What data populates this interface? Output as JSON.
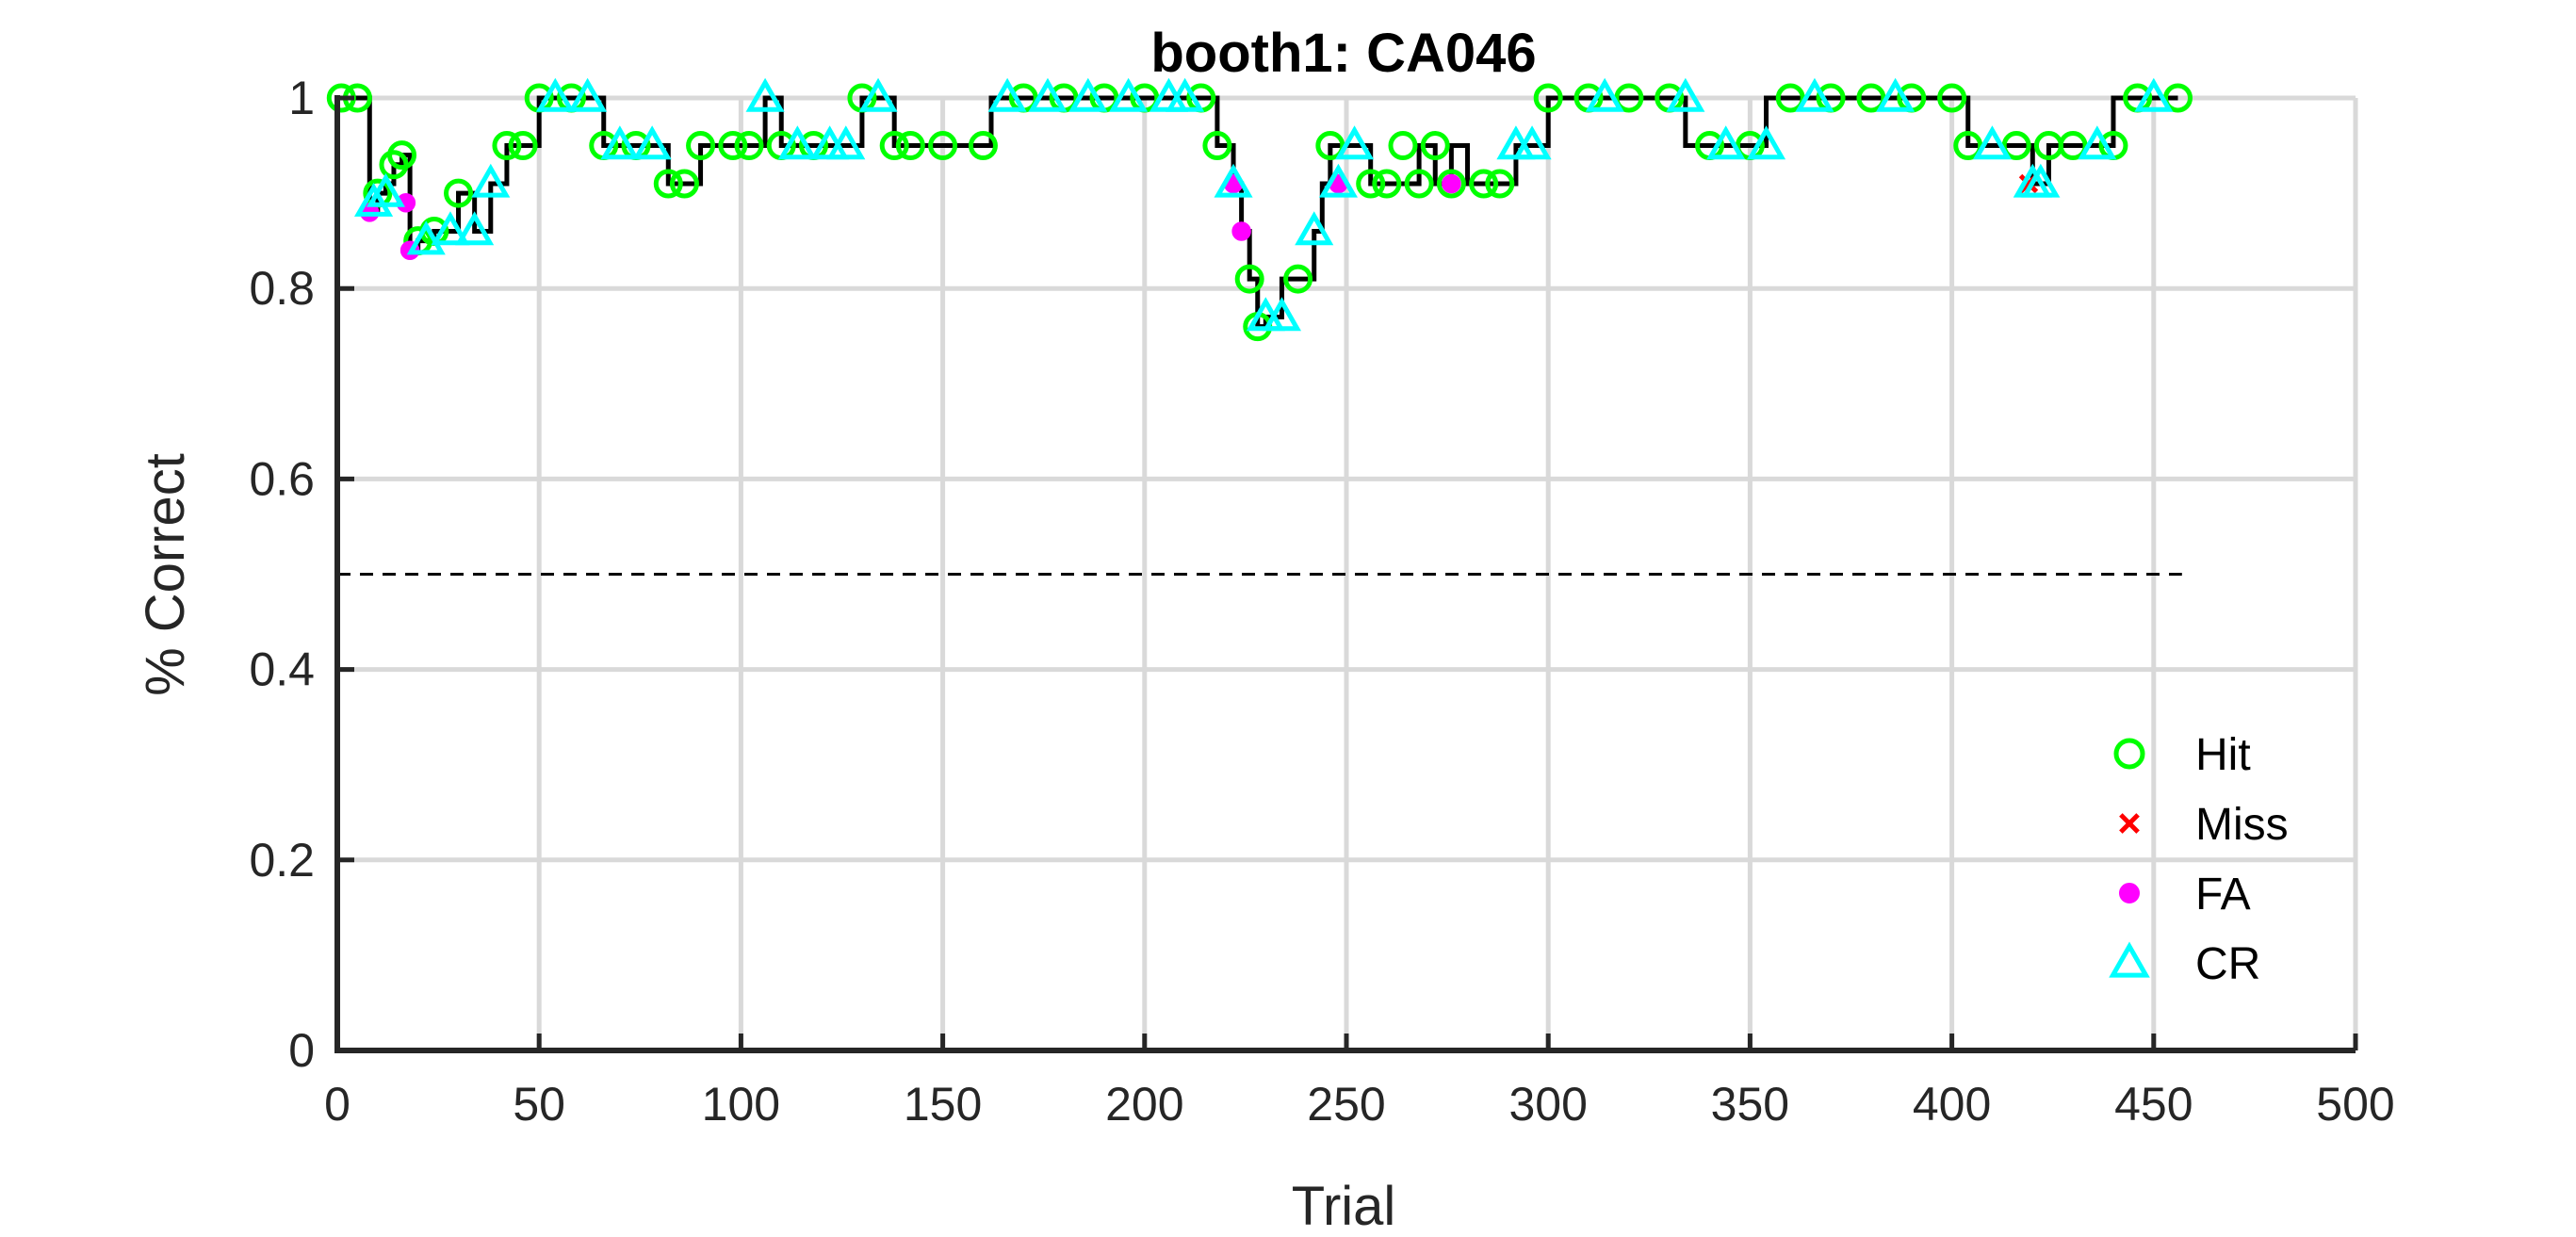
{
  "chart_data": {
    "type": "line",
    "title": "booth1: CA046",
    "xlabel": "Trial",
    "ylabel": "% Correct",
    "xlim": [
      0,
      500
    ],
    "ylim": [
      0,
      1
    ],
    "xticks": [
      "0",
      "50",
      "100",
      "150",
      "200",
      "250",
      "300",
      "350",
      "400",
      "450",
      "500"
    ],
    "yticks": [
      "0",
      "0.2",
      "0.4",
      "0.6",
      "0.8",
      "1"
    ],
    "grid": true,
    "legend_position": "bottom-right",
    "chance_line": {
      "y": 0.5,
      "x_range": [
        0,
        457
      ],
      "style": "dashed"
    },
    "colors": {
      "line": "#000000",
      "Hit": "#00ff00",
      "Miss": "#ff0000",
      "FA": "#ff00ff",
      "CR": "#00ffff"
    },
    "performance": {
      "x": [
        1,
        5,
        8,
        10,
        12,
        14,
        16,
        18,
        20,
        24,
        28,
        30,
        34,
        38,
        42,
        46,
        50,
        54,
        58,
        62,
        66,
        70,
        74,
        78,
        82,
        84,
        86,
        90,
        94,
        98,
        102,
        106,
        110,
        114,
        118,
        122,
        126,
        130,
        134,
        138,
        142,
        150,
        160,
        162,
        170,
        180,
        190,
        200,
        210,
        214,
        218,
        222,
        224,
        226,
        228,
        230,
        234,
        238,
        242,
        244,
        246,
        248,
        252,
        256,
        260,
        264,
        268,
        272,
        276,
        280,
        284,
        288,
        292,
        296,
        300,
        310,
        320,
        330,
        334,
        340,
        350,
        354,
        360,
        370,
        380,
        390,
        400,
        404,
        410,
        416,
        420,
        424,
        430,
        436,
        440,
        446,
        452,
        456
      ],
      "y": [
        1,
        1,
        0.88,
        0.9,
        0.91,
        0.93,
        0.94,
        0.84,
        0.85,
        0.86,
        0.86,
        0.9,
        0.86,
        0.91,
        0.95,
        0.95,
        1,
        1,
        1,
        1,
        0.95,
        0.95,
        0.95,
        0.95,
        0.91,
        0.91,
        0.91,
        0.95,
        0.95,
        0.95,
        0.95,
        1,
        0.95,
        0.95,
        0.95,
        0.95,
        0.95,
        1,
        1,
        0.95,
        0.95,
        0.95,
        0.95,
        1,
        1,
        1,
        1,
        1,
        1,
        1,
        0.95,
        0.91,
        0.86,
        0.81,
        0.76,
        0.77,
        0.81,
        0.81,
        0.86,
        0.91,
        0.95,
        0.95,
        0.95,
        0.91,
        0.91,
        0.91,
        0.95,
        0.91,
        0.95,
        0.91,
        0.91,
        0.91,
        0.95,
        0.95,
        1,
        1,
        1,
        1,
        0.95,
        0.95,
        0.95,
        1,
        1,
        1,
        1,
        1,
        1,
        0.95,
        0.95,
        0.95,
        0.91,
        0.95,
        0.95,
        0.95,
        1,
        1,
        1,
        1
      ]
    },
    "series": [
      {
        "name": "Hit",
        "marker": "circle-open",
        "x": [
          1,
          5,
          10,
          14,
          16,
          20,
          24,
          30,
          42,
          46,
          50,
          58,
          66,
          74,
          82,
          86,
          90,
          98,
          102,
          110,
          118,
          130,
          138,
          142,
          150,
          160,
          170,
          180,
          190,
          200,
          214,
          218,
          226,
          228,
          238,
          246,
          256,
          260,
          264,
          268,
          272,
          276,
          284,
          288,
          300,
          310,
          320,
          330,
          340,
          350,
          360,
          370,
          380,
          390,
          400,
          404,
          416,
          424,
          430,
          440,
          446,
          456
        ],
        "y": [
          1,
          1,
          0.9,
          0.93,
          0.94,
          0.85,
          0.86,
          0.9,
          0.95,
          0.95,
          1,
          1,
          0.95,
          0.95,
          0.91,
          0.91,
          0.95,
          0.95,
          0.95,
          0.95,
          0.95,
          1,
          0.95,
          0.95,
          0.95,
          0.95,
          1,
          1,
          1,
          1,
          1,
          0.95,
          0.81,
          0.76,
          0.81,
          0.95,
          0.91,
          0.91,
          0.95,
          0.91,
          0.95,
          0.91,
          0.91,
          0.91,
          1,
          1,
          1,
          1,
          0.95,
          0.95,
          1,
          1,
          1,
          1,
          1,
          0.95,
          0.95,
          0.95,
          0.95,
          0.95,
          1,
          1
        ]
      },
      {
        "name": "Miss",
        "marker": "x",
        "x": [
          419
        ],
        "y": [
          0.91
        ]
      },
      {
        "name": "FA",
        "marker": "circle-filled",
        "x": [
          8,
          17,
          18,
          222,
          224,
          248,
          276
        ],
        "y": [
          0.88,
          0.89,
          0.84,
          0.91,
          0.86,
          0.91,
          0.91
        ]
      },
      {
        "name": "CR",
        "marker": "triangle-open",
        "x": [
          9,
          12,
          22,
          28,
          34,
          38,
          54,
          62,
          70,
          78,
          106,
          114,
          122,
          126,
          134,
          166,
          176,
          186,
          196,
          206,
          210,
          222,
          230,
          234,
          242,
          248,
          252,
          292,
          296,
          314,
          334,
          344,
          354,
          366,
          386,
          410,
          420,
          422,
          436,
          450
        ],
        "y": [
          0.89,
          0.9,
          0.85,
          0.86,
          0.86,
          0.91,
          1,
          1,
          0.95,
          0.95,
          1,
          0.95,
          0.95,
          0.95,
          1,
          1,
          1,
          1,
          1,
          1,
          1,
          0.91,
          0.77,
          0.77,
          0.86,
          0.91,
          0.95,
          0.95,
          0.95,
          1,
          1,
          0.95,
          0.95,
          1,
          1,
          0.95,
          0.91,
          0.91,
          0.95,
          1
        ]
      }
    ]
  }
}
